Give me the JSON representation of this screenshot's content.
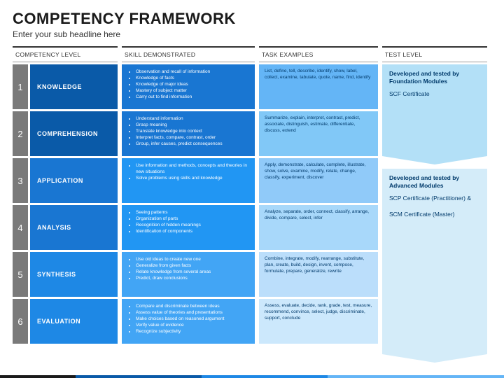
{
  "title": "COMPETENCY FRAMEWORK",
  "subtitle": "Enter your sub headline here",
  "headers": {
    "level": "COMPETENCY LEVEL",
    "skill": "SKILL DEMONSTRATED",
    "task": "TASK EXAMPLES",
    "test": "TEST LEVEL"
  },
  "colors": {
    "num": "#7a7a7a",
    "levels": [
      "#0a5aa8",
      "#0a5aa8",
      "#1976d2",
      "#1976d2",
      "#1e88e5",
      "#1e88e5"
    ],
    "skills": [
      "#1976d2",
      "#1976d2",
      "#2196f3",
      "#2196f3",
      "#42a5f5",
      "#42a5f5"
    ],
    "tasks": [
      "#64b5f6",
      "#81c8f7",
      "#90caf9",
      "#a8d8fa",
      "#bbdefb",
      "#cce8fc"
    ],
    "tests": [
      "#b3e0f7",
      "#d4ecf9"
    ]
  },
  "rows": [
    {
      "num": "1",
      "level": "KNOWLEDGE",
      "skills": [
        "Observation and recall of information",
        "Knowledge of facts",
        "Knowledge of major ideas",
        "Mastery of subject matter",
        "Carry out to find information"
      ],
      "task": "List, define, tell, describe, identify, show, label, collect, examine, tabulate, quote, name, find, identify"
    },
    {
      "num": "2",
      "level": "COMPREHENSION",
      "skills": [
        "Understand information",
        "Grasp meaning",
        "Translate knowledge into context",
        "Interpret facts, compare, contrast, order",
        "Group, infer causes, predict consequences"
      ],
      "task": "Summarize, explain, interpret, contrast, predict, associate, distinguish, estimate, differentiate, discuss, extend"
    },
    {
      "num": "3",
      "level": "APPLICATION",
      "skills": [
        "Use information and methods, concepts and theories in new situations",
        "Solve problems using skills and knowledge"
      ],
      "task": "Apply, demonstrate, calculate, complete, illustrate, show, solve, examine, modify, relate, change, classify, experiment, discover"
    },
    {
      "num": "4",
      "level": "ANALYSIS",
      "skills": [
        "Seeing patterns",
        "Organization of parts",
        "Recognition of hidden meanings",
        "Identification of components"
      ],
      "task": "Analyze, separate, order, connect, classify, arrange, divide, compare, select, infer"
    },
    {
      "num": "5",
      "level": "SYNTHESIS",
      "skills": [
        "Use old ideas to create new one",
        "Generalize from given facts",
        "Relate knowledge from several areas",
        "Predict, draw conclusions"
      ],
      "task": "Combine, integrate, modify, rearrange, substitute, plan, create, build, design, invent, compose, formulate, prepare, generalize, rewrite"
    },
    {
      "num": "6",
      "level": "EVALUATION",
      "skills": [
        "Compare and discriminate between ideas",
        "Assess value of theories and presentations",
        "Make choices based on reasoned argument",
        "Verify value of evidence",
        "Recognize subjectivity"
      ],
      "task": "Assess, evaluate, decide, rank, grade, test, measure, recommend, convince, select, judge, discriminate, support, conclude"
    }
  ],
  "tests": [
    {
      "bold": "Developed and tested by Foundation Modules",
      "text": "SCF Certificate",
      "rows": 2
    },
    {
      "bold": "Developed and tested by Advanced Modules",
      "text": "SCP Certificate (Practitioner) & \n\nSCM Certificate (Master)",
      "rows": 4
    }
  ]
}
